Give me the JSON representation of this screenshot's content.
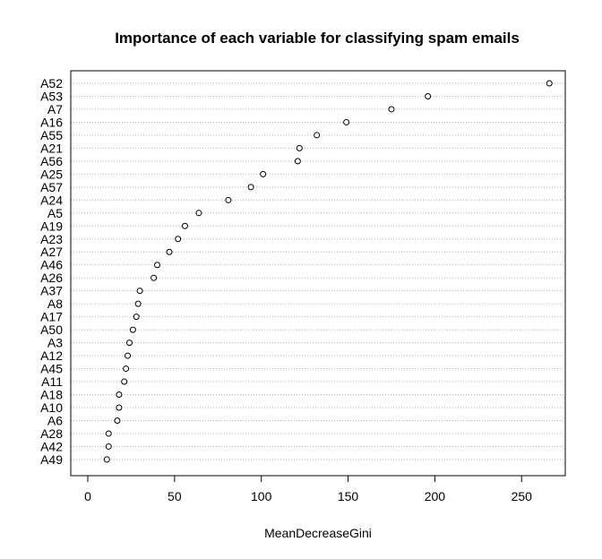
{
  "chart_data": {
    "type": "scatter",
    "title": "Importance of each variable for classifying spam emails",
    "xlabel": "MeanDecreaseGini",
    "ylabel": "",
    "xlim": [
      0,
      275
    ],
    "xticks": [
      0,
      50,
      100,
      150,
      200,
      250
    ],
    "grid": "horizontal-dotted",
    "categories": [
      "A52",
      "A53",
      "A7",
      "A16",
      "A55",
      "A21",
      "A56",
      "A25",
      "A57",
      "A24",
      "A5",
      "A19",
      "A23",
      "A27",
      "A46",
      "A26",
      "A37",
      "A8",
      "A17",
      "A50",
      "A3",
      "A12",
      "A45",
      "A11",
      "A18",
      "A10",
      "A6",
      "A28",
      "A42",
      "A49"
    ],
    "values": [
      266,
      196,
      175,
      149,
      132,
      122,
      121,
      101,
      94,
      81,
      64,
      56,
      52,
      47,
      40,
      38,
      30,
      29,
      28,
      26,
      24,
      23,
      22,
      21,
      18,
      18,
      17,
      12,
      12,
      11
    ]
  }
}
